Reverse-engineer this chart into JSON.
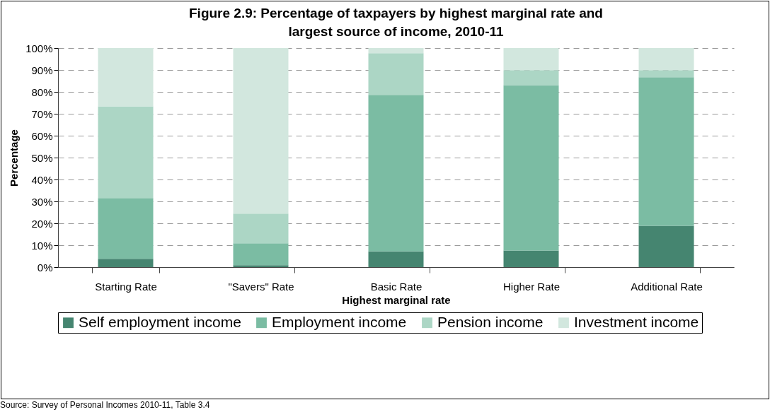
{
  "chart_data": {
    "type": "bar",
    "stacked": true,
    "title": "Figure 2.9: Percentage of taxpayers by highest marginal rate and largest source of income, 2010-11",
    "xlabel": "Highest marginal rate",
    "ylabel": "Percentage",
    "categories": [
      "Starting Rate",
      "\"Savers\" Rate",
      "Basic Rate",
      "Higher Rate",
      "Additional Rate"
    ],
    "series": [
      {
        "name": "Self employment income",
        "color": "#458570",
        "values": [
          3.8,
          0.9,
          7.2,
          7.6,
          18.9
        ]
      },
      {
        "name": "Employment income",
        "color": "#7bbca3",
        "values": [
          27.7,
          10.0,
          71.4,
          75.5,
          67.8
        ]
      },
      {
        "name": "Pension income",
        "color": "#acd6c5",
        "values": [
          41.9,
          13.5,
          19.1,
          6.8,
          3.2
        ]
      },
      {
        "name": "Investment income",
        "color": "#d2e7de",
        "values": [
          26.6,
          75.6,
          2.3,
          10.1,
          10.1
        ]
      }
    ],
    "ylim": [
      0,
      100
    ],
    "yticks": [
      {
        "value": 0,
        "label": "0%"
      },
      {
        "value": 10,
        "label": "10%"
      },
      {
        "value": 20,
        "label": "20%"
      },
      {
        "value": 30,
        "label": "30%"
      },
      {
        "value": 40,
        "label": "40%"
      },
      {
        "value": 50,
        "label": "50%"
      },
      {
        "value": 60,
        "label": "60%"
      },
      {
        "value": 70,
        "label": "70%"
      },
      {
        "value": 80,
        "label": "80%"
      },
      {
        "value": 90,
        "label": "90%"
      },
      {
        "value": 100,
        "label": "100%"
      }
    ],
    "grid": "y",
    "legend": "bottom",
    "annotations": [
      "Source: Survey of Personal Incomes 2010-11, Table 3.4"
    ]
  }
}
